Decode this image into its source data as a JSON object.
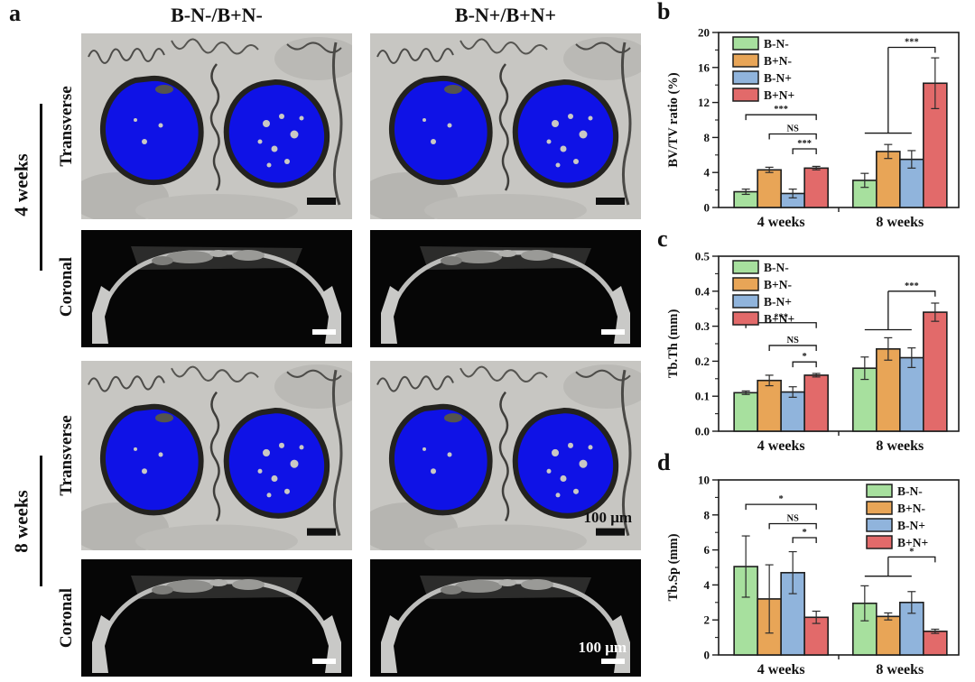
{
  "figure_labels": {
    "a": "a",
    "b": "b",
    "c": "c",
    "d": "d"
  },
  "panel_a": {
    "column_headers": [
      "B-N-/B+N-",
      "B-N+/B+N+"
    ],
    "groups": [
      {
        "time_label": "4 weeks",
        "row_labels": [
          "Transverse",
          "Coronal"
        ]
      },
      {
        "time_label": "8 weeks",
        "row_labels": [
          "Transverse",
          "Coronal"
        ]
      }
    ],
    "scale_bar_label_transverse": "100 μm",
    "scale_bar_label_coronal": "100 μm"
  },
  "colors": {
    "group_green": "#a7e09e",
    "group_orange": "#e8a557",
    "group_blue": "#90b4dc",
    "group_red": "#e26a6a",
    "implant_blue": "#0f12e6"
  },
  "chart_data": [
    {
      "panel": "b",
      "type": "bar",
      "ylabel": "BV/TV ratio (%)",
      "ylim": [
        0,
        20
      ],
      "yticks": [
        0,
        4,
        8,
        12,
        16,
        20
      ],
      "ytick_labels": [
        "0",
        "4",
        "8",
        "12",
        "16",
        "20"
      ],
      "categories": [
        "4 weeks",
        "8 weeks"
      ],
      "series": [
        {
          "name": "B-N-",
          "color": "#a7e09e",
          "values": [
            1.8,
            3.1
          ],
          "errors": [
            0.3,
            0.8
          ]
        },
        {
          "name": "B+N-",
          "color": "#e8a557",
          "values": [
            4.3,
            6.4
          ],
          "errors": [
            0.3,
            0.8
          ]
        },
        {
          "name": "B-N+",
          "color": "#90b4dc",
          "values": [
            1.6,
            5.5
          ],
          "errors": [
            0.5,
            1.0
          ]
        },
        {
          "name": "B+N+",
          "color": "#e26a6a",
          "values": [
            4.5,
            14.2
          ],
          "errors": [
            0.2,
            2.9
          ]
        }
      ],
      "legend_position": "top-left",
      "grid": false,
      "significance": [
        {
          "kind": "bracket",
          "group": 0,
          "from": 0,
          "to": 3,
          "y": 10.6,
          "label": "***"
        },
        {
          "kind": "bracket",
          "group": 0,
          "from": 1,
          "to": 3,
          "y": 8.4,
          "label": "NS"
        },
        {
          "kind": "bracket",
          "group": 0,
          "from": 2,
          "to": 3,
          "y": 6.7,
          "label": "***"
        },
        {
          "kind": "combined",
          "group": 1,
          "bars": [
            0,
            1,
            2
          ],
          "target": 3,
          "base_y": 8.5,
          "top_y": 18.3,
          "label": "***"
        }
      ]
    },
    {
      "panel": "c",
      "type": "bar",
      "ylabel": "Tb.Th (mm)",
      "ylim": [
        0,
        0.5
      ],
      "yticks": [
        0,
        0.1,
        0.2,
        0.3,
        0.4,
        0.5
      ],
      "ytick_labels": [
        "0.0",
        "0.1",
        "0.2",
        "0.3",
        "0.4",
        "0.5"
      ],
      "categories": [
        "4 weeks",
        "8 weeks"
      ],
      "series": [
        {
          "name": "B-N-",
          "color": "#a7e09e",
          "values": [
            0.11,
            0.18
          ],
          "errors": [
            0.005,
            0.032
          ]
        },
        {
          "name": "B+N-",
          "color": "#e8a557",
          "values": [
            0.145,
            0.235
          ],
          "errors": [
            0.015,
            0.032
          ]
        },
        {
          "name": "B-N+",
          "color": "#90b4dc",
          "values": [
            0.112,
            0.21
          ],
          "errors": [
            0.015,
            0.028
          ]
        },
        {
          "name": "B+N+",
          "color": "#e26a6a",
          "values": [
            0.16,
            0.34
          ],
          "errors": [
            0.005,
            0.026
          ]
        }
      ],
      "legend_position": "top-left",
      "grid": false,
      "significance": [
        {
          "kind": "bracket",
          "group": 0,
          "from": 0,
          "to": 3,
          "y": 0.31,
          "label": "***"
        },
        {
          "kind": "bracket",
          "group": 0,
          "from": 1,
          "to": 3,
          "y": 0.245,
          "label": "NS"
        },
        {
          "kind": "bracket",
          "group": 0,
          "from": 2,
          "to": 3,
          "y": 0.198,
          "label": "*"
        },
        {
          "kind": "combined",
          "group": 1,
          "bars": [
            0,
            1,
            2
          ],
          "target": 3,
          "base_y": 0.29,
          "top_y": 0.4,
          "label": "***"
        }
      ]
    },
    {
      "panel": "d",
      "type": "bar",
      "ylabel": "Tb.Sp (mm)",
      "ylim": [
        0,
        10
      ],
      "yticks": [
        0,
        2,
        4,
        6,
        8,
        10
      ],
      "ytick_labels": [
        "0",
        "2",
        "4",
        "6",
        "8",
        "10"
      ],
      "categories": [
        "4 weeks",
        "8 weeks"
      ],
      "series": [
        {
          "name": "B-N-",
          "color": "#a7e09e",
          "values": [
            5.05,
            2.95
          ],
          "errors": [
            1.75,
            1.0
          ]
        },
        {
          "name": "B+N-",
          "color": "#e8a557",
          "values": [
            3.2,
            2.2
          ],
          "errors": [
            1.95,
            0.2
          ]
        },
        {
          "name": "B-N+",
          "color": "#90b4dc",
          "values": [
            4.7,
            3.0
          ],
          "errors": [
            1.2,
            0.62
          ]
        },
        {
          "name": "B+N+",
          "color": "#e26a6a",
          "values": [
            2.15,
            1.35
          ],
          "errors": [
            0.35,
            0.12
          ]
        }
      ],
      "legend_position": "top-right",
      "grid": false,
      "significance": [
        {
          "kind": "bracket",
          "group": 0,
          "from": 0,
          "to": 3,
          "y": 8.6,
          "label": "*"
        },
        {
          "kind": "bracket",
          "group": 0,
          "from": 1,
          "to": 3,
          "y": 7.5,
          "label": "NS"
        },
        {
          "kind": "bracket",
          "group": 0,
          "from": 2,
          "to": 3,
          "y": 6.7,
          "label": "*"
        },
        {
          "kind": "combined",
          "group": 1,
          "bars": [
            0,
            1,
            2
          ],
          "target": 3,
          "base_y": 4.5,
          "top_y": 5.6,
          "label": "*"
        }
      ]
    }
  ]
}
